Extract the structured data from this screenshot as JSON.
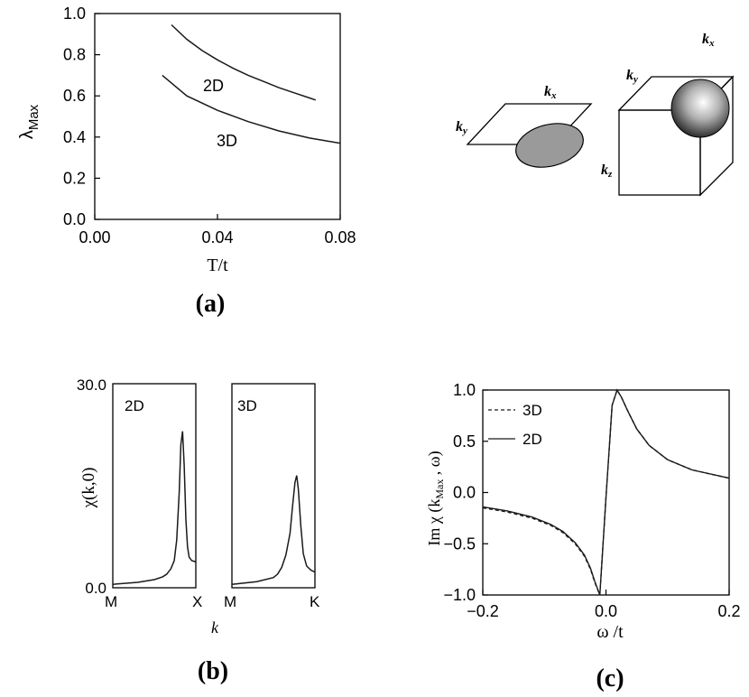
{
  "chart_data": [
    {
      "panel": "(a)",
      "type": "line",
      "xlabel": "T/t",
      "ylabel": "λ",
      "ylabel_sub": "Max",
      "xlim": [
        0.0,
        0.08
      ],
      "ylim": [
        0.0,
        1.0
      ],
      "xticks": [
        "0.00",
        "0.04",
        "0.08"
      ],
      "xtick_values": [
        0.0,
        0.04,
        0.08
      ],
      "yticks": [
        "0.0",
        "0.2",
        "0.4",
        "0.6",
        "0.8",
        "1.0"
      ],
      "ytick_values": [
        0.0,
        0.2,
        0.4,
        0.6,
        0.8,
        1.0
      ],
      "grid": false,
      "series": [
        {
          "name": "2D",
          "x": [
            0.025,
            0.03,
            0.035,
            0.04,
            0.045,
            0.05,
            0.055,
            0.06,
            0.065,
            0.07,
            0.072
          ],
          "y": [
            0.945,
            0.875,
            0.82,
            0.775,
            0.735,
            0.7,
            0.67,
            0.64,
            0.615,
            0.59,
            0.58
          ]
        },
        {
          "name": "3D",
          "x": [
            0.022,
            0.03,
            0.04,
            0.05,
            0.06,
            0.07,
            0.08
          ],
          "y": [
            0.7,
            0.6,
            0.53,
            0.475,
            0.43,
            0.395,
            0.37
          ]
        }
      ],
      "annotations": [
        "2D",
        "3D"
      ]
    },
    {
      "panel": "(b)",
      "type": "line",
      "ylabel": "χ(k,0)",
      "xlabel": "k",
      "yticks": [
        "30.0",
        "0.0"
      ],
      "ylim": [
        0.0,
        30.0
      ],
      "subplots": [
        {
          "name": "2D",
          "xticks": [
            "M",
            "X"
          ],
          "x": [
            0,
            0.3,
            0.5,
            0.6,
            0.65,
            0.7,
            0.74,
            0.77,
            0.8,
            0.82,
            0.84,
            0.86,
            0.88,
            0.9,
            0.92,
            0.95,
            1.0
          ],
          "y": [
            0.5,
            0.8,
            1.2,
            1.6,
            2.0,
            2.8,
            4.0,
            7.0,
            14.0,
            21.0,
            23.0,
            18.0,
            10.0,
            6.0,
            4.5,
            4.0,
            3.8
          ]
        },
        {
          "name": "3D",
          "xticks": [
            "M",
            "K"
          ],
          "x": [
            0,
            0.3,
            0.5,
            0.55,
            0.6,
            0.65,
            0.7,
            0.73,
            0.76,
            0.78,
            0.8,
            0.83,
            0.86,
            0.9,
            0.95,
            1.0
          ],
          "y": [
            0.5,
            0.9,
            1.5,
            2.0,
            3.0,
            4.8,
            8.0,
            12.0,
            15.5,
            16.5,
            14.5,
            9.0,
            5.0,
            3.2,
            2.6,
            2.3
          ]
        }
      ]
    },
    {
      "panel": "(c)",
      "type": "line",
      "xlabel": "ω /t",
      "ylabel": "Im  χ (k",
      "ylabel_sub": "Max",
      "ylabel_tail": " , ω)",
      "xlim": [
        -0.2,
        0.2
      ],
      "ylim": [
        -1.0,
        1.0
      ],
      "xticks": [
        "−0.2",
        "0.0",
        "0.2"
      ],
      "xtick_values": [
        -0.2,
        0.0,
        0.2
      ],
      "yticks": [
        "1.0",
        "0.5",
        "0.0",
        "−0.5",
        "−1.0"
      ],
      "ytick_values": [
        1.0,
        0.5,
        0.0,
        -0.5,
        -1.0
      ],
      "grid": false,
      "legend": "top-left",
      "series": [
        {
          "name": "3D",
          "style": "dashed",
          "x": [
            -0.2,
            -0.16,
            -0.12,
            -0.09,
            -0.07,
            -0.05,
            -0.035,
            -0.025,
            -0.018,
            -0.01,
            0.0,
            0.01,
            0.018,
            0.025,
            0.035,
            0.05,
            0.07,
            0.1,
            0.14,
            0.2
          ],
          "y": [
            -0.15,
            -0.19,
            -0.25,
            -0.32,
            -0.39,
            -0.5,
            -0.62,
            -0.75,
            -0.88,
            -1.0,
            -0.05,
            0.85,
            1.0,
            0.93,
            0.8,
            0.62,
            0.46,
            0.32,
            0.22,
            0.14
          ]
        },
        {
          "name": "2D",
          "style": "solid",
          "x": [
            -0.2,
            -0.16,
            -0.12,
            -0.09,
            -0.07,
            -0.05,
            -0.035,
            -0.025,
            -0.018,
            -0.01,
            0.0,
            0.01,
            0.018,
            0.025,
            0.035,
            0.05,
            0.07,
            0.1,
            0.14,
            0.2
          ],
          "y": [
            -0.14,
            -0.18,
            -0.24,
            -0.31,
            -0.38,
            -0.49,
            -0.61,
            -0.74,
            -0.87,
            -1.0,
            -0.05,
            0.85,
            1.0,
            0.93,
            0.8,
            0.62,
            0.46,
            0.32,
            0.22,
            0.14
          ]
        }
      ]
    }
  ],
  "diagrams": {
    "plane": {
      "kx": "k",
      "kx_sub": "x",
      "ky": "k",
      "ky_sub": "y"
    },
    "cube": {
      "kx": "k",
      "kx_sub": "x",
      "ky": "k",
      "ky_sub": "y",
      "kz": "k",
      "kz_sub": "z"
    }
  },
  "panel_labels": {
    "a": "(a)",
    "b": "(b)",
    "c": "(c)"
  },
  "colors": {
    "line": "#1a1a1a",
    "ellipse": "#9a9a9a"
  }
}
